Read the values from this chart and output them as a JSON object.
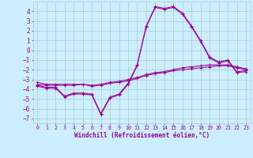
{
  "xlabel": "Windchill (Refroidissement éolien,°C)",
  "bg_color": "#cceeff",
  "grid_color": "#aacccc",
  "line_color": "#990099",
  "xlim": [
    -0.5,
    23.5
  ],
  "ylim": [
    -7.5,
    5.0
  ],
  "yticks": [
    -7,
    -6,
    -5,
    -4,
    -3,
    -2,
    -1,
    0,
    1,
    2,
    3,
    4
  ],
  "xticks": [
    0,
    1,
    2,
    3,
    4,
    5,
    6,
    7,
    8,
    9,
    10,
    11,
    12,
    13,
    14,
    15,
    16,
    17,
    18,
    19,
    20,
    21,
    22,
    23
  ],
  "line1_x": [
    0,
    1,
    2,
    3,
    4,
    5,
    6,
    7,
    8,
    9,
    10,
    11,
    12,
    13,
    14,
    15,
    16,
    17,
    18,
    19,
    20,
    21,
    22,
    23
  ],
  "line1_y": [
    -3.3,
    -3.5,
    -3.5,
    -3.5,
    -3.5,
    -3.5,
    -3.6,
    -3.5,
    -3.3,
    -3.2,
    -3.0,
    -2.8,
    -2.5,
    -2.3,
    -2.2,
    -2.0,
    -1.8,
    -1.7,
    -1.6,
    -1.5,
    -1.5,
    -1.5,
    -1.7,
    -1.9
  ],
  "line2_x": [
    0,
    1,
    2,
    3,
    4,
    5,
    6,
    7,
    8,
    9,
    10,
    11,
    12,
    13,
    14,
    15,
    16,
    17,
    18,
    19,
    20,
    21,
    22,
    23
  ],
  "line2_y": [
    -3.5,
    -3.6,
    -3.6,
    -3.6,
    -3.6,
    -3.5,
    -3.7,
    -3.6,
    -3.4,
    -3.3,
    -3.15,
    -2.9,
    -2.6,
    -2.4,
    -2.3,
    -2.1,
    -2.0,
    -1.9,
    -1.8,
    -1.7,
    -1.6,
    -1.6,
    -1.8,
    -2.0
  ],
  "line3_x": [
    0,
    1,
    2,
    3,
    4,
    5,
    6,
    7,
    8,
    9,
    10,
    11,
    12,
    13,
    14,
    15,
    16,
    17,
    18,
    19,
    20,
    21,
    22,
    23
  ],
  "line3_y": [
    -3.6,
    -3.8,
    -3.8,
    -4.7,
    -4.4,
    -4.4,
    -4.5,
    -6.5,
    -4.8,
    -4.5,
    -3.4,
    -1.5,
    2.5,
    4.5,
    4.3,
    4.5,
    3.8,
    2.5,
    1.0,
    -0.7,
    -1.2,
    -1.0,
    -2.2,
    -2.1
  ],
  "line4_x": [
    0,
    1,
    2,
    3,
    4,
    5,
    6,
    7,
    8,
    9,
    10,
    11,
    12,
    13,
    14,
    15,
    16,
    17,
    18,
    19,
    20,
    21,
    22,
    23
  ],
  "line4_y": [
    -3.7,
    -3.9,
    -3.9,
    -4.8,
    -4.5,
    -4.5,
    -4.6,
    -6.6,
    -4.9,
    -4.6,
    -3.5,
    -1.6,
    2.4,
    4.4,
    4.2,
    4.4,
    3.7,
    2.4,
    0.9,
    -0.8,
    -1.3,
    -1.1,
    -2.3,
    -2.2
  ]
}
